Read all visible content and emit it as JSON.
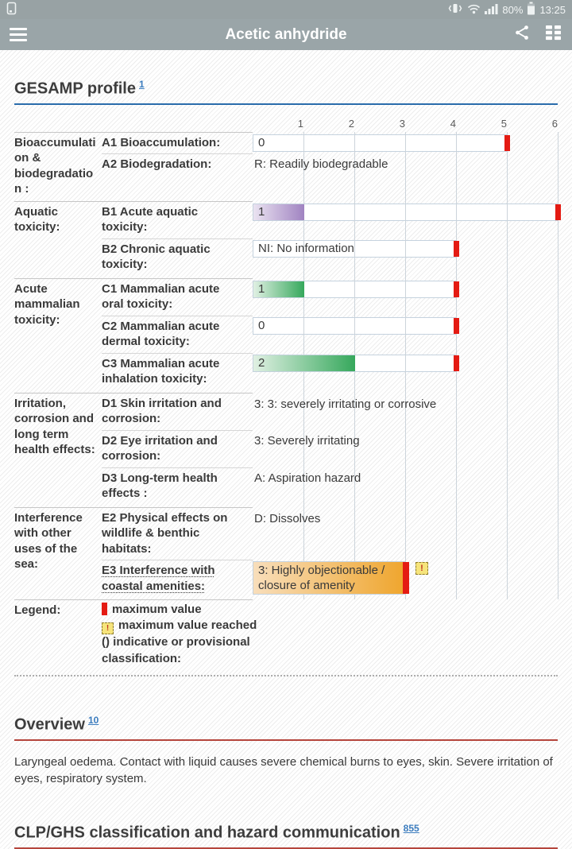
{
  "status_bar": {
    "battery": "80%",
    "time": "13:25"
  },
  "app_bar": {
    "title": "Acetic anhydride"
  },
  "gesamp": {
    "heading": "GESAMP profile",
    "ref": "1",
    "scale_ticks": [
      "1",
      "2",
      "3",
      "4",
      "5",
      "6"
    ],
    "groups": [
      {
        "category": "Bioaccumulation & biodegradation :",
        "rows": [
          {
            "label": "A1 Bioaccumulation:",
            "text": "0",
            "box_max": 5,
            "bar": 0,
            "marker": true
          },
          {
            "label": "A2 Biodegradation:",
            "text": "R: Readily biodegradable"
          }
        ]
      },
      {
        "category": "Aquatic toxicity:",
        "rows": [
          {
            "label": "B1 Acute aquatic toxicity:",
            "text": "1",
            "box_max": 6,
            "bar": 1,
            "bar_color": "purple",
            "marker": true
          },
          {
            "label": "B2 Chronic aquatic toxicity:",
            "text": "NI: No information",
            "box_max": 4,
            "bar": 0,
            "marker": true
          }
        ]
      },
      {
        "category": "Acute mammalian toxicity:",
        "rows": [
          {
            "label": "C1 Mammalian acute oral toxicity:",
            "text": "1",
            "box_max": 4,
            "bar": 1,
            "bar_color": "green",
            "marker": true
          },
          {
            "label": "C2 Mammalian acute dermal toxicity:",
            "text": "0",
            "box_max": 4,
            "bar": 0,
            "marker": true
          },
          {
            "label": "C3 Mammalian acute inhalation toxicity:",
            "text": "2",
            "box_max": 4,
            "bar": 2,
            "bar_color": "green",
            "marker": true
          }
        ]
      },
      {
        "category": "Irritation, corrosion and long term health effects:",
        "rows": [
          {
            "label": "D1 Skin irritation and corrosion:",
            "text": "3: 3: severely irritating or corrosive"
          },
          {
            "label": "D2 Eye irritation and corrosion:",
            "text": "3: Severely irritating"
          },
          {
            "label": "D3 Long-term health effects :",
            "text": "A: Aspiration hazard"
          }
        ]
      },
      {
        "category": "Interference with other uses of the sea:",
        "rows": [
          {
            "label": "E2 Physical effects on wildlife & benthic habitats:",
            "text": "D: Dissolves"
          },
          {
            "label": "E3 Interference with coastal amenities:",
            "label_dotted": true,
            "text": "3: Highly objectionable / closure of amenity",
            "box_max": 3,
            "bar": 3,
            "bar_color": "orange",
            "marker": true,
            "warning": true,
            "tall": true
          }
        ]
      }
    ],
    "legend": {
      "category": "Legend:",
      "warning_char": "!",
      "items": [
        {
          "icon": "max-marker",
          "text": "maximum value"
        },
        {
          "icon": "warning",
          "text": "maximum value reached"
        },
        {
          "icon": "none",
          "text": "() indicative or provisional classification:"
        }
      ]
    }
  },
  "overview": {
    "heading": "Overview",
    "ref": "10",
    "text": "Laryngeal oedema. Contact with liquid causes severe chemical burns to eyes, skin. Severe irritation of eyes, respiratory system."
  },
  "clp": {
    "heading": "CLP/GHS classification and hazard communication",
    "ref": "855"
  },
  "colors": {
    "marker_red": "#e41b13",
    "bar_purple": "#a083c1",
    "bar_green": "#36a85c",
    "bar_orange": "#efa52c",
    "warning_bg": "#f6e47b",
    "link_blue": "#3b7cbe",
    "rule_blue": "#2a6cab",
    "rule_red": "#b5453c"
  }
}
